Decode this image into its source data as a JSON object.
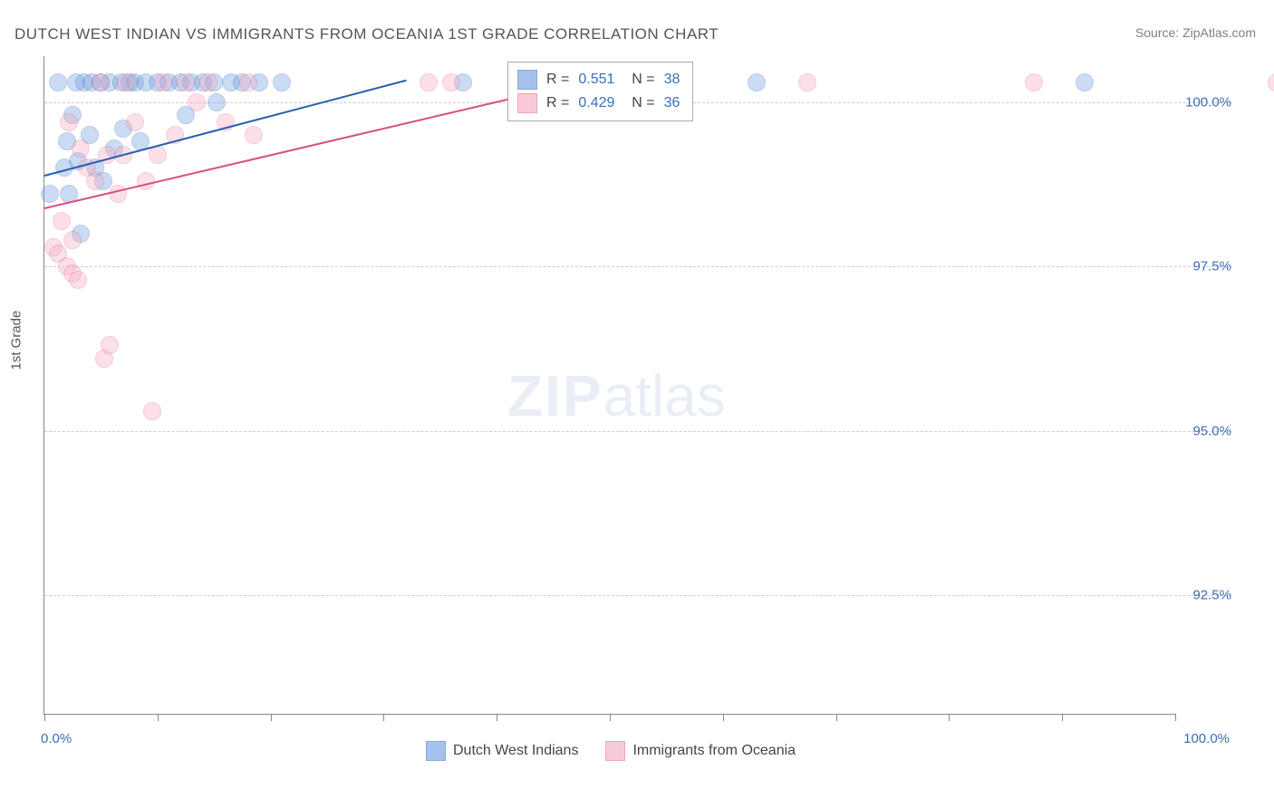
{
  "title": "DUTCH WEST INDIAN VS IMMIGRANTS FROM OCEANIA 1ST GRADE CORRELATION CHART",
  "source": "Source: ZipAtlas.com",
  "y_axis_title": "1st Grade",
  "watermark_zip": "ZIP",
  "watermark_atlas": "atlas",
  "chart": {
    "type": "scatter",
    "xlim": [
      0,
      100
    ],
    "ylim": [
      90.7,
      100.7
    ],
    "x_ticks": [
      0,
      10,
      20,
      30,
      40,
      50,
      60,
      70,
      80,
      90,
      100
    ],
    "y_gridlines": [
      92.5,
      95.0,
      97.5,
      100.0
    ],
    "x_min_label": "0.0%",
    "x_max_label": "100.0%",
    "background_color": "#ffffff",
    "grid_color": "#cccccc",
    "axis_color": "#888888",
    "tick_label_color": "#3b6fb5",
    "marker_radius": 9,
    "marker_opacity_fill": 0.35,
    "series": [
      {
        "name": "Dutch West Indians",
        "color": "#6b9be0",
        "stroke": "#3b6fb5",
        "r_value": "0.551",
        "n_value": "38",
        "trendline": {
          "x1": 0,
          "y1": 98.9,
          "x2": 32,
          "y2": 100.35,
          "color": "#2a5fb0",
          "width": 2
        },
        "points": [
          [
            0.5,
            98.6
          ],
          [
            1.2,
            100.3
          ],
          [
            1.8,
            99.0
          ],
          [
            2.0,
            99.4
          ],
          [
            2.2,
            98.6
          ],
          [
            2.5,
            99.8
          ],
          [
            2.8,
            100.3
          ],
          [
            3.0,
            99.1
          ],
          [
            3.2,
            98.0
          ],
          [
            3.5,
            100.3
          ],
          [
            4.0,
            99.5
          ],
          [
            4.2,
            100.3
          ],
          [
            4.5,
            99.0
          ],
          [
            5.0,
            100.3
          ],
          [
            5.2,
            98.8
          ],
          [
            5.8,
            100.3
          ],
          [
            6.2,
            99.3
          ],
          [
            6.8,
            100.3
          ],
          [
            7.0,
            99.6
          ],
          [
            7.5,
            100.3
          ],
          [
            8.0,
            100.3
          ],
          [
            8.5,
            99.4
          ],
          [
            9.0,
            100.3
          ],
          [
            10.0,
            100.3
          ],
          [
            11.0,
            100.3
          ],
          [
            12.0,
            100.3
          ],
          [
            12.5,
            99.8
          ],
          [
            13.0,
            100.3
          ],
          [
            14.0,
            100.3
          ],
          [
            15.0,
            100.3
          ],
          [
            15.2,
            100.0
          ],
          [
            16.5,
            100.3
          ],
          [
            17.5,
            100.3
          ],
          [
            19.0,
            100.3
          ],
          [
            21.0,
            100.3
          ],
          [
            37.0,
            100.3
          ],
          [
            63.0,
            100.3
          ],
          [
            92.0,
            100.3
          ]
        ]
      },
      {
        "name": "Immigrants from Oceania",
        "color": "#f4a8c0",
        "stroke": "#e06a94",
        "r_value": "0.429",
        "n_value": "36",
        "trendline": {
          "x1": 0,
          "y1": 98.4,
          "x2": 47,
          "y2": 100.3,
          "color": "#d8527f",
          "width": 2
        },
        "points": [
          [
            0.8,
            97.8
          ],
          [
            1.2,
            97.7
          ],
          [
            1.5,
            98.2
          ],
          [
            2.0,
            97.5
          ],
          [
            2.2,
            99.7
          ],
          [
            2.5,
            97.4
          ],
          [
            2.5,
            97.9
          ],
          [
            3.0,
            97.3
          ],
          [
            3.2,
            99.3
          ],
          [
            3.8,
            99.0
          ],
          [
            4.5,
            98.8
          ],
          [
            5.0,
            100.3
          ],
          [
            5.3,
            96.1
          ],
          [
            5.5,
            99.2
          ],
          [
            5.8,
            96.3
          ],
          [
            6.5,
            98.6
          ],
          [
            7.0,
            99.2
          ],
          [
            7.2,
            100.3
          ],
          [
            8.0,
            99.7
          ],
          [
            9.0,
            98.8
          ],
          [
            9.5,
            95.3
          ],
          [
            10.0,
            99.2
          ],
          [
            10.5,
            100.3
          ],
          [
            11.5,
            99.5
          ],
          [
            12.5,
            100.3
          ],
          [
            13.5,
            100.0
          ],
          [
            14.5,
            100.3
          ],
          [
            16.0,
            99.7
          ],
          [
            18.0,
            100.3
          ],
          [
            18.5,
            99.5
          ],
          [
            34.0,
            100.3
          ],
          [
            36.0,
            100.3
          ],
          [
            53.5,
            100.3
          ],
          [
            67.5,
            100.3
          ],
          [
            87.5,
            100.3
          ],
          [
            109.0,
            100.3
          ]
        ]
      }
    ]
  },
  "legend": {
    "r_label": "R =",
    "n_label": "N ="
  },
  "bottom_legend": {
    "series1": "Dutch West Indians",
    "series2": "Immigrants from Oceania"
  }
}
